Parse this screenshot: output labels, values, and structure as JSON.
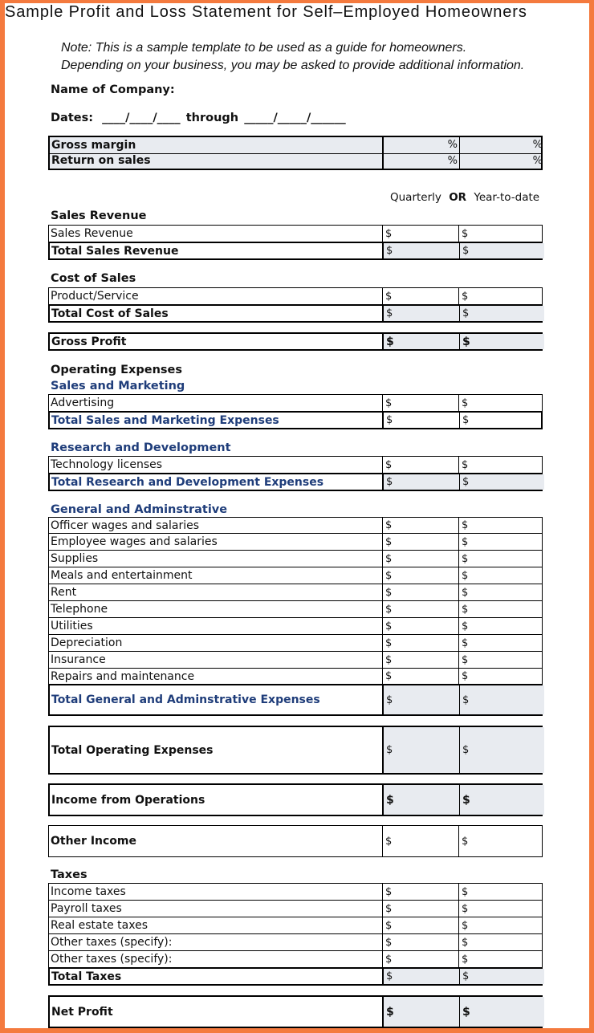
{
  "title": "Sample Profit and Loss Statement for Self–Employed Homeowners",
  "note": {
    "line1": "Note: This is a sample template to be used as a guide for homeowners.",
    "line2": "Depending on your business, you may be asked to provide additional information."
  },
  "company_label": "Name of Company:",
  "dates_label": "Dates:",
  "dates_blank1": "____/____/____",
  "dates_through": "through",
  "dates_blank2": "_____/_____/______",
  "ratios": [
    {
      "label": "Gross margin",
      "a": "%",
      "b": "%"
    },
    {
      "label": "Return on sales",
      "a": "%",
      "b": "%"
    }
  ],
  "period": {
    "quarterly": "Quarterly",
    "or": "OR",
    "ytd": "Year-to-date"
  },
  "currency": "$",
  "sales_revenue": {
    "heading": "Sales Revenue",
    "items": [
      "Sales Revenue"
    ],
    "total": "Total Sales Revenue"
  },
  "cost_of_sales": {
    "heading": "Cost of Sales",
    "items": [
      "Product/Service"
    ],
    "total": "Total Cost of Sales"
  },
  "gross_profit": "Gross Profit",
  "operating_expenses": {
    "heading": "Operating Expenses",
    "sales_marketing": {
      "heading": "Sales and Marketing",
      "items": [
        "Advertising"
      ],
      "total": "Total Sales and Marketing Expenses"
    },
    "research_development": {
      "heading": "Research and Development",
      "items": [
        "Technology licenses"
      ],
      "total": "Total Research and Development Expenses"
    },
    "general_admin": {
      "heading": "General and Adminstrative",
      "items": [
        "Officer wages and salaries",
        "Employee wages and salaries",
        "Supplies",
        "Meals and entertainment",
        "Rent",
        "Telephone",
        "Utilities",
        "Depreciation",
        "Insurance",
        "Repairs and maintenance"
      ],
      "total": "Total General and Adminstrative Expenses"
    }
  },
  "total_operating_expenses": "Total Operating Expenses",
  "income_from_operations": "Income from Operations",
  "other_income": "Other Income",
  "taxes": {
    "heading": "Taxes",
    "items": [
      "Income taxes",
      "Payroll taxes",
      "Real estate taxes",
      "Other taxes (specify):",
      "Other taxes (specify):"
    ],
    "total": "Total Taxes"
  },
  "net_profit": "Net Profit",
  "colors": {
    "border": "#f47a3e",
    "blue_text": "#1f3d7a",
    "shade": "#e8ebf0"
  }
}
